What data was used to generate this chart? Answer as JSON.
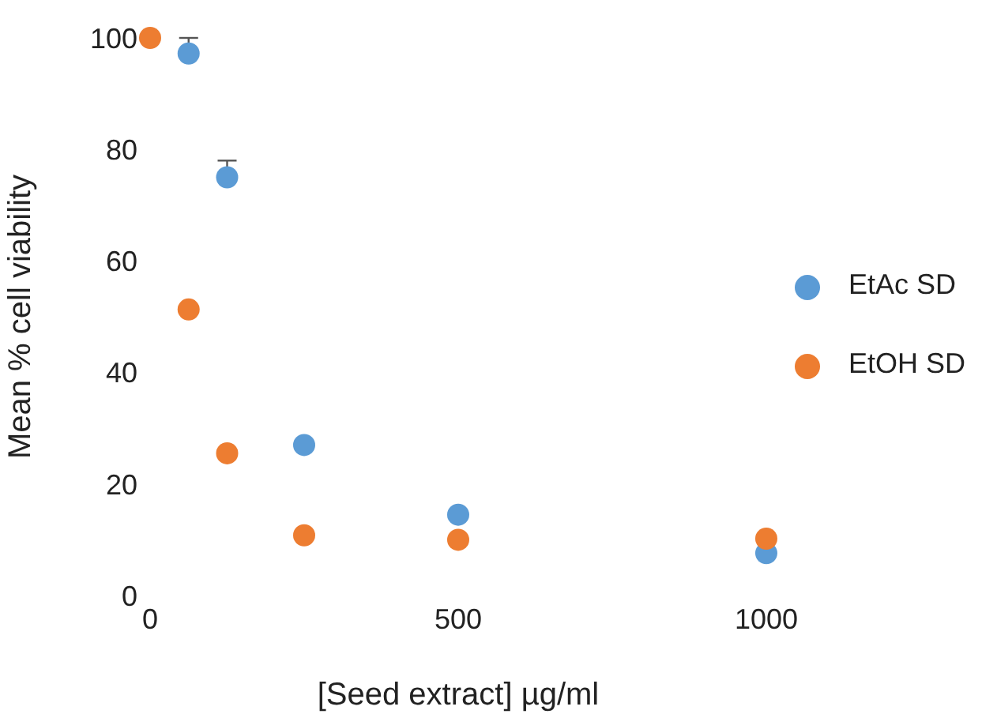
{
  "chart_data": {
    "type": "scatter",
    "xlabel": "[Seed extract] µg/ml",
    "ylabel": "Mean % cell viability",
    "x": [
      0,
      62.5,
      125,
      250,
      500,
      1000
    ],
    "series": [
      {
        "name": "EtAc SD",
        "color": "#5b9bd5",
        "values": [
          null,
          97.2,
          75,
          27,
          14.5,
          7.6
        ],
        "errors": [
          null,
          [
            97.2,
            100
          ],
          [
            75,
            78
          ],
          null,
          null,
          null
        ]
      },
      {
        "name": "EtOH SD",
        "color": "#ed7d31",
        "values": [
          100,
          51.3,
          25.5,
          10.8,
          10,
          10.2
        ]
      }
    ],
    "xlim": [
      0,
      1000
    ],
    "xticks": [
      0,
      500,
      1000
    ],
    "ylim": [
      0,
      100
    ],
    "yticks": [
      0,
      20,
      40,
      60,
      80,
      100
    ],
    "legend": "right",
    "marker": "circle",
    "grid": false
  }
}
